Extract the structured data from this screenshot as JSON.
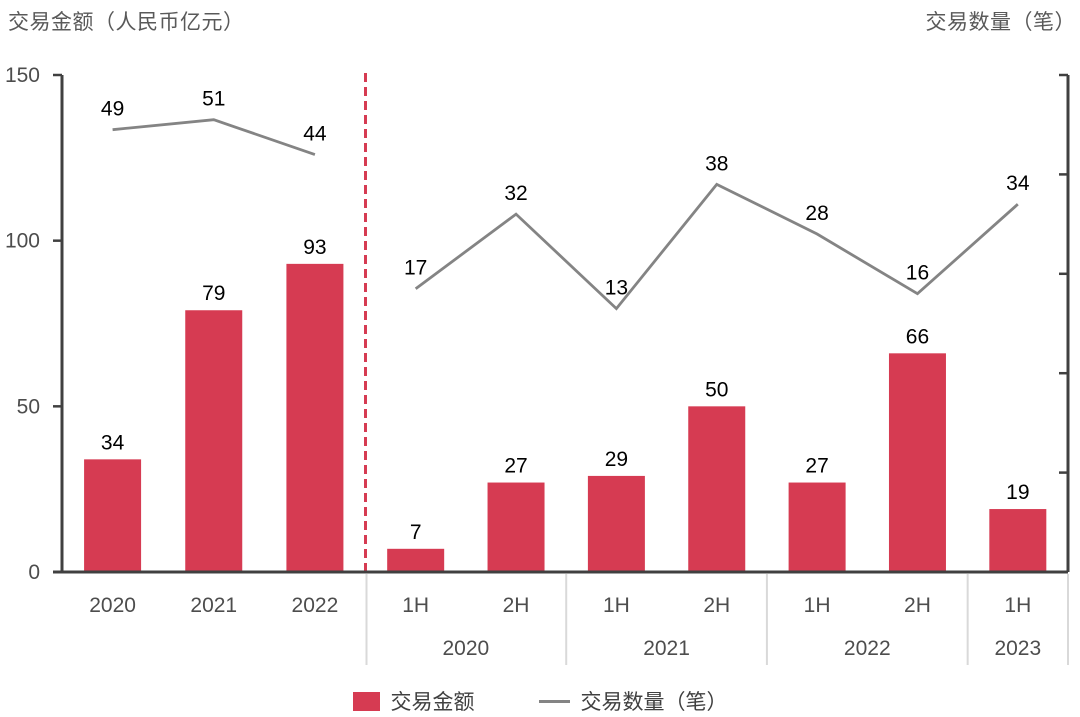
{
  "header": {
    "left_axis_title": "交易金额（人民币亿元）",
    "right_axis_title": "交易数量（笔）"
  },
  "legend": {
    "bar_label": "交易金额",
    "line_label": "交易数量（笔）"
  },
  "chart_data": {
    "type": "bar+line",
    "bar_series_name": "交易金额",
    "line_series_name": "交易数量（笔）",
    "amount_axis": {
      "title": "交易金额（人民币亿元）",
      "ticks": [
        0,
        50,
        100,
        150
      ],
      "min": 0,
      "max": 150,
      "labels_visible": true
    },
    "count_axis": {
      "title": "交易数量（笔）",
      "min": -40,
      "max": 60,
      "tick_interval": 20,
      "labels_visible": false
    },
    "grid": false,
    "legend_position": "bottom",
    "sections": [
      {
        "id": "annual",
        "categories": [
          "2020",
          "2021",
          "2022"
        ],
        "amounts": [
          34,
          79,
          93
        ],
        "counts": [
          49,
          51,
          44
        ]
      },
      {
        "id": "half_year",
        "groups": [
          {
            "year": "2020",
            "periods": [
              "1H",
              "2H"
            ],
            "amounts": [
              7,
              27
            ],
            "counts": [
              17,
              32
            ]
          },
          {
            "year": "2021",
            "periods": [
              "1H",
              "2H"
            ],
            "amounts": [
              29,
              50
            ],
            "counts": [
              13,
              38
            ]
          },
          {
            "year": "2022",
            "periods": [
              "1H",
              "2H"
            ],
            "amounts": [
              27,
              66
            ],
            "counts": [
              28,
              16
            ]
          },
          {
            "year": "2023",
            "periods": [
              "1H"
            ],
            "amounts": [
              19
            ],
            "counts": [
              34
            ]
          }
        ]
      }
    ],
    "colors": {
      "bar": "#D63B52",
      "line": "#848484",
      "section_divider": "#D63B52",
      "axis": "#404040",
      "value_label": "#000000",
      "tick_label": "#4D4D4D",
      "group_separator": "#D9D9D9"
    }
  }
}
